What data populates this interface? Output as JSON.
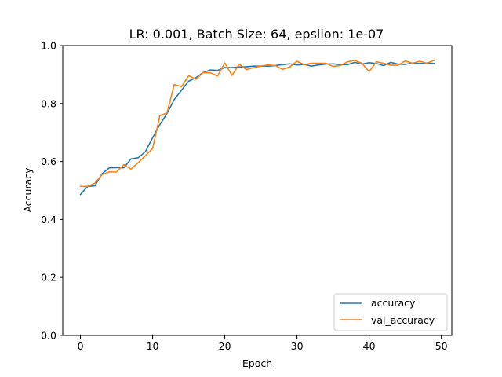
{
  "chart_data": {
    "type": "line",
    "title": "LR: 0.001, Batch Size: 64, epsilon: 1e-07",
    "xlabel": "Epoch",
    "ylabel": "Accuracy",
    "xlim": [
      -2.45,
      51.45
    ],
    "ylim": [
      0.0,
      1.0
    ],
    "xticks": [
      0,
      10,
      20,
      30,
      40,
      50
    ],
    "yticks": [
      0.0,
      0.2,
      0.4,
      0.6,
      0.8,
      1.0
    ],
    "xtick_labels": [
      "0",
      "10",
      "20",
      "30",
      "40",
      "50"
    ],
    "ytick_labels": [
      "0.0",
      "0.2",
      "0.4",
      "0.6",
      "0.8",
      "1.0"
    ],
    "grid": false,
    "legend_position": "lower right",
    "x": [
      0,
      1,
      2,
      3,
      4,
      5,
      6,
      7,
      8,
      9,
      10,
      11,
      12,
      13,
      14,
      15,
      16,
      17,
      18,
      19,
      20,
      21,
      22,
      23,
      24,
      25,
      26,
      27,
      28,
      29,
      30,
      31,
      32,
      33,
      34,
      35,
      36,
      37,
      38,
      39,
      40,
      41,
      42,
      43,
      44,
      45,
      46,
      47,
      48,
      49
    ],
    "series": [
      {
        "name": "accuracy",
        "color": "#1f77b4",
        "values": [
          0.486,
          0.514,
          0.516,
          0.558,
          0.578,
          0.579,
          0.578,
          0.609,
          0.613,
          0.634,
          0.682,
          0.727,
          0.766,
          0.814,
          0.846,
          0.877,
          0.889,
          0.907,
          0.916,
          0.914,
          0.924,
          0.924,
          0.926,
          0.927,
          0.929,
          0.929,
          0.929,
          0.931,
          0.934,
          0.937,
          0.933,
          0.935,
          0.929,
          0.933,
          0.936,
          0.937,
          0.934,
          0.934,
          0.942,
          0.936,
          0.941,
          0.938,
          0.931,
          0.942,
          0.936,
          0.935,
          0.94,
          0.938,
          0.939,
          0.938
        ]
      },
      {
        "name": "val_accuracy",
        "color": "#ff7f0e",
        "values": [
          0.514,
          0.514,
          0.525,
          0.555,
          0.564,
          0.564,
          0.589,
          0.574,
          0.596,
          0.62,
          0.645,
          0.758,
          0.768,
          0.866,
          0.858,
          0.896,
          0.884,
          0.907,
          0.906,
          0.895,
          0.94,
          0.897,
          0.936,
          0.917,
          0.924,
          0.929,
          0.933,
          0.931,
          0.918,
          0.926,
          0.946,
          0.934,
          0.939,
          0.939,
          0.939,
          0.928,
          0.931,
          0.944,
          0.949,
          0.939,
          0.91,
          0.944,
          0.939,
          0.932,
          0.932,
          0.947,
          0.939,
          0.946,
          0.939,
          0.949
        ]
      }
    ]
  }
}
